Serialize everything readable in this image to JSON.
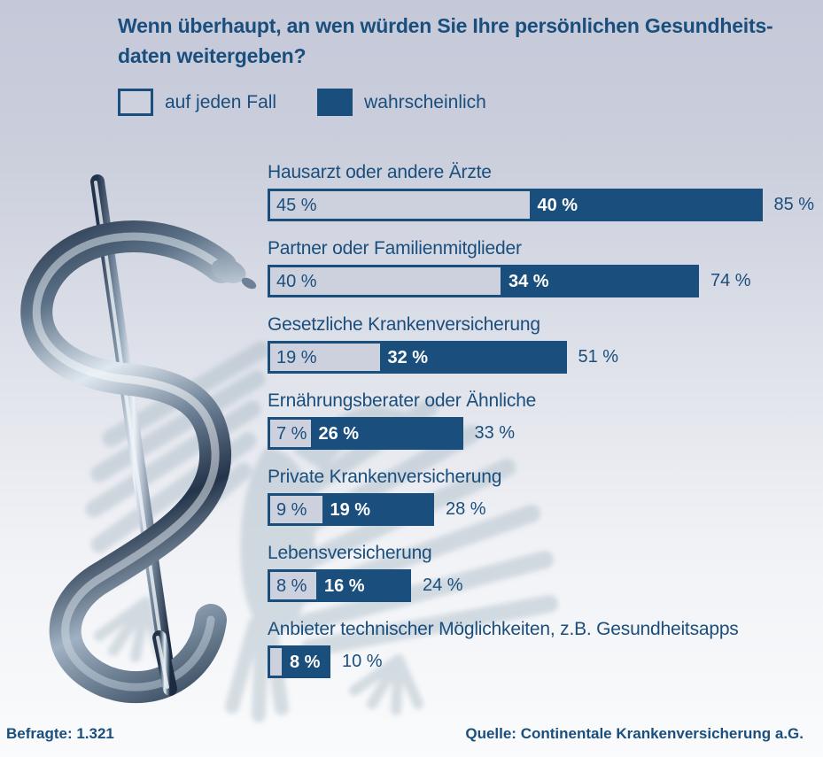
{
  "title": {
    "line1": "Wenn überhaupt, an wen würden Sie Ihre persönlichen Gesundheits-",
    "line2": "daten weitergeben?"
  },
  "legend": {
    "auf_jeden_fall": "auf jeden Fall",
    "wahrscheinlich": "wahrscheinlich"
  },
  "footer": {
    "respondents": "Befragte: 1.321",
    "source": "Quelle: Continentale Krankenversicherung a.G."
  },
  "colors": {
    "dark_blue": "#1a4e7d",
    "light_segment": "#cdd1de",
    "background_top": "#c4c8d8",
    "background_bottom": "#fafbfc",
    "value_text_on_dark": "#ffffff",
    "eagle_shadow": "#a3b6c1"
  },
  "chart_data": {
    "type": "bar",
    "orientation": "horizontal",
    "stacked": true,
    "unit": "%",
    "x_range": [
      0,
      100
    ],
    "grid": false,
    "legend_position": "top",
    "series_names": [
      "auf jeden Fall",
      "wahrscheinlich"
    ],
    "rows": [
      {
        "category": "Hausarzt oder andere Ärzte",
        "auf_jeden_fall": 45,
        "wahrscheinlich": 40,
        "total": 85,
        "auf_jeden_fall_label": "45 %",
        "wahrscheinlich_label": "40 %",
        "total_label": "85 %"
      },
      {
        "category": "Partner oder Familienmitglieder",
        "auf_jeden_fall": 40,
        "wahrscheinlich": 34,
        "total": 74,
        "auf_jeden_fall_label": "40 %",
        "wahrscheinlich_label": "34 %",
        "total_label": "74 %"
      },
      {
        "category": "Gesetzliche Krankenversicherung",
        "auf_jeden_fall": 19,
        "wahrscheinlich": 32,
        "total": 51,
        "auf_jeden_fall_label": "19 %",
        "wahrscheinlich_label": "32 %",
        "total_label": "51 %"
      },
      {
        "category": "Ernährungsberater oder Ähnliche",
        "auf_jeden_fall": 7,
        "wahrscheinlich": 26,
        "total": 33,
        "auf_jeden_fall_label": "7 %",
        "wahrscheinlich_label": "26 %",
        "total_label": "33 %"
      },
      {
        "category": "Private Krankenversicherung",
        "auf_jeden_fall": 9,
        "wahrscheinlich": 19,
        "total": 28,
        "auf_jeden_fall_label": "9 %",
        "wahrscheinlich_label": "19 %",
        "total_label": "28 %"
      },
      {
        "category": "Lebensversicherung",
        "auf_jeden_fall": 8,
        "wahrscheinlich": 16,
        "total": 24,
        "auf_jeden_fall_label": "8 %",
        "wahrscheinlich_label": "16 %",
        "total_label": "24 %"
      },
      {
        "category": "Anbieter technischer Möglichkeiten, z.B. Gesundheitsapps",
        "auf_jeden_fall": 2,
        "wahrscheinlich": 8,
        "total": 10,
        "auf_jeden_fall_label": "",
        "wahrscheinlich_label": "8 %",
        "total_label": "10 %"
      }
    ]
  }
}
